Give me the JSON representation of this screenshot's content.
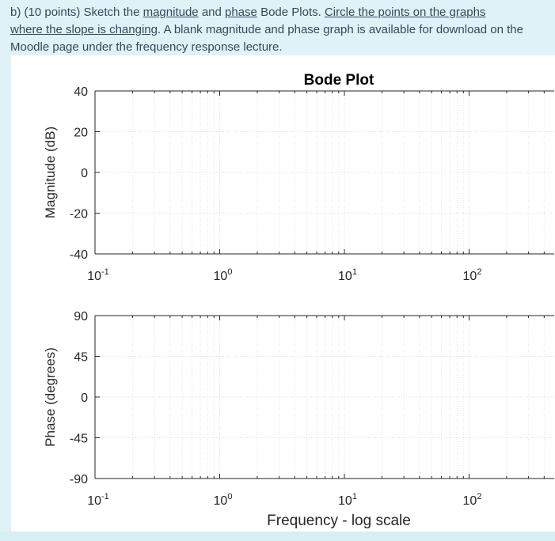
{
  "question": {
    "prefix": "b) (10 points) Sketch the ",
    "link_magnitude": "magnitude",
    "and": " and ",
    "link_phase": "phase",
    "middle": " Bode Plots. ",
    "link_circle_1": "Circle the points on the graphs",
    "link_circle_2": "where the slope is changing",
    "suffix": ". A blank magnitude and phase graph is available for download on the Moodle page under the frequency response lecture."
  },
  "chart_data": [
    {
      "type": "line",
      "title": "Bode Plot",
      "ylabel": "Magnitude (dB)",
      "xlabel": "",
      "xscale": "log",
      "xlim": [
        0.1,
        1000
      ],
      "ylim": [
        -40,
        40
      ],
      "yticks": [
        "40",
        "20",
        "0",
        "-20",
        "-40"
      ],
      "xticks": [
        {
          "base": "10",
          "exp": "-1"
        },
        {
          "base": "10",
          "exp": "0"
        },
        {
          "base": "10",
          "exp": "1"
        },
        {
          "base": "10",
          "exp": "2"
        }
      ],
      "grid": true,
      "series": []
    },
    {
      "type": "line",
      "title": "",
      "ylabel": "Phase (degrees)",
      "xlabel": "Frequency - log scale",
      "xscale": "log",
      "xlim": [
        0.1,
        1000
      ],
      "ylim": [
        -90,
        90
      ],
      "yticks": [
        "90",
        "45",
        "0",
        "-45",
        "-90"
      ],
      "xticks": [
        {
          "base": "10",
          "exp": "-1"
        },
        {
          "base": "10",
          "exp": "0"
        },
        {
          "base": "10",
          "exp": "1"
        },
        {
          "base": "10",
          "exp": "2"
        }
      ],
      "grid": true,
      "series": []
    }
  ]
}
